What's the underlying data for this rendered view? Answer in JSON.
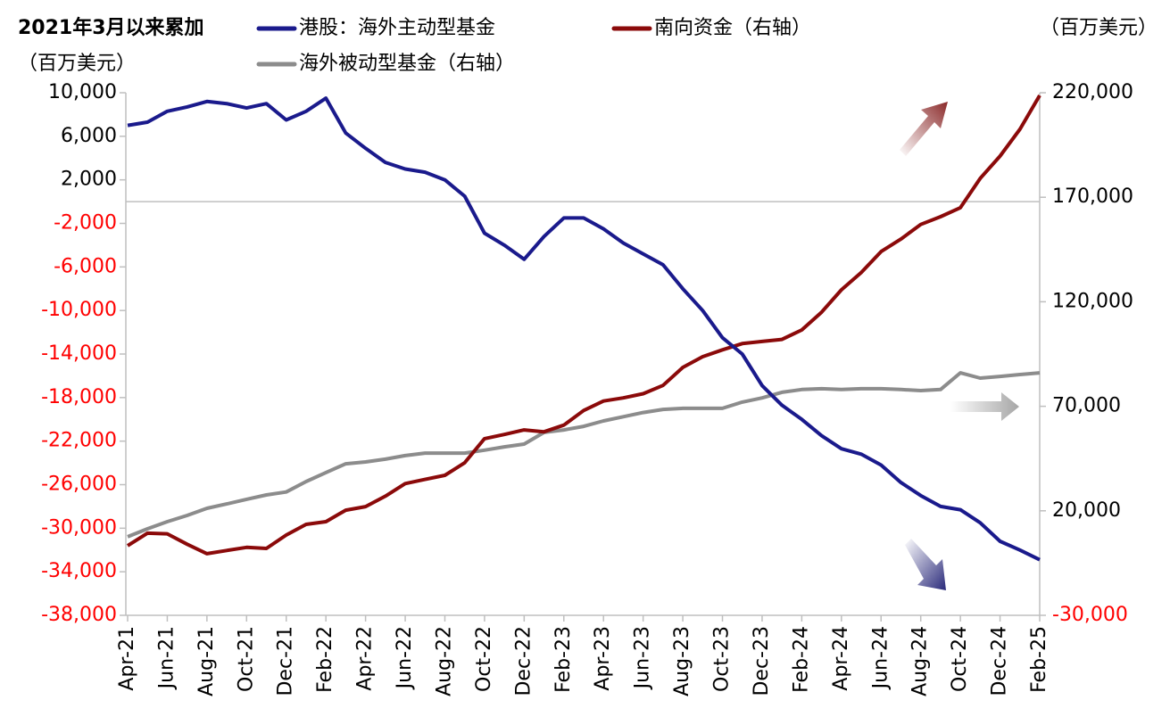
{
  "chart_data": {
    "type": "line",
    "title": "2021年3月以来累加",
    "ylabel": "（百万美元）",
    "y2label": "（百万美元）",
    "categories": [
      "Apr-21",
      null,
      "Jun-21",
      null,
      "Aug-21",
      null,
      "Oct-21",
      null,
      "Dec-21",
      null,
      "Feb-22",
      null,
      "Apr-22",
      null,
      "Jun-22",
      null,
      "Aug-22",
      null,
      "Oct-22",
      null,
      "Dec-22",
      null,
      "Feb-23",
      null,
      "Apr-23",
      null,
      "Jun-23",
      null,
      "Aug-23",
      null,
      "Oct-23",
      null,
      "Dec-23",
      null,
      "Feb-24",
      null,
      "Apr-24",
      null,
      "Jun-24",
      null,
      "Aug-24",
      null,
      "Oct-24",
      null,
      "Dec-24",
      null,
      "Feb-25"
    ],
    "series": [
      {
        "name": "港股：海外主动型基金",
        "color": "#1a1a8c",
        "values": [
          7000,
          7300,
          8300,
          8700,
          9200,
          9000,
          8600,
          9000,
          7500,
          8300,
          9500,
          6300,
          4900,
          3600,
          3000,
          2700,
          2000,
          500,
          -2900,
          -4000,
          -5300,
          -3200,
          -1500,
          -1500,
          -2500,
          -3800,
          -4800,
          -5800,
          -8000,
          -10000,
          -12500,
          -14000,
          -16900,
          -18700,
          -20000,
          -21500,
          -22700,
          -23200,
          -24200,
          -25800,
          -27000,
          -28000,
          -28300,
          -29500,
          -31200,
          -32000,
          -32900
        ]
      },
      {
        "name": "南向资金（右轴）",
        "color": "#8b0a0a",
        "axis": "y2",
        "values": [
          3300,
          9300,
          9000,
          4000,
          -500,
          1000,
          2500,
          2000,
          8400,
          13500,
          14800,
          20300,
          22000,
          27000,
          33000,
          35000,
          37000,
          43000,
          54500,
          56500,
          58700,
          57800,
          61000,
          68000,
          72500,
          74000,
          76000,
          80000,
          88600,
          93700,
          97000,
          100000,
          101000,
          102000,
          106500,
          115000,
          125700,
          134000,
          144000,
          150000,
          157000,
          160700,
          165000,
          179000,
          189700,
          202500,
          218700
        ]
      },
      {
        "name": "海外被动型基金（右轴）",
        "color": "#8c8c8c",
        "axis": "y2",
        "values": [
          7600,
          11400,
          14800,
          17800,
          21200,
          23300,
          25500,
          27600,
          29000,
          34000,
          38300,
          42500,
          43400,
          44700,
          46400,
          47600,
          47600,
          47600,
          49000,
          50600,
          51900,
          57500,
          58700,
          60400,
          63000,
          65000,
          67000,
          68500,
          69000,
          69000,
          69000,
          72000,
          74000,
          76700,
          78000,
          78400,
          78000,
          78400,
          78400,
          78000,
          77500,
          78000,
          86000,
          83500,
          84300,
          85200,
          86000
        ]
      }
    ],
    "ylim": [
      -38000,
      10000
    ],
    "yticks": [
      {
        "value": -38000,
        "label": "-38,000"
      },
      {
        "value": -34000,
        "label": "-34,000"
      },
      {
        "value": -30000,
        "label": "-30,000"
      },
      {
        "value": -26000,
        "label": "-26,000"
      },
      {
        "value": -22000,
        "label": "-22,000"
      },
      {
        "value": -18000,
        "label": "-18,000"
      },
      {
        "value": -14000,
        "label": "-14,000"
      },
      {
        "value": -10000,
        "label": "-10,000"
      },
      {
        "value": -6000,
        "label": "-6,000"
      },
      {
        "value": -2000,
        "label": "-2,000"
      },
      {
        "value": 2000,
        "label": "2,000"
      },
      {
        "value": 6000,
        "label": "6,000"
      },
      {
        "value": 10000,
        "label": "10,000"
      }
    ],
    "y2lim": [
      -30000,
      220000
    ],
    "y2ticks": [
      {
        "value": -30000,
        "label": "-30,000"
      },
      {
        "value": 20000,
        "label": "20,000"
      },
      {
        "value": 70000,
        "label": "70,000"
      },
      {
        "value": 120000,
        "label": "120,000"
      },
      {
        "value": 170000,
        "label": "170,000"
      },
      {
        "value": 220000,
        "label": "220,000"
      }
    ],
    "negative_tick_color": "#ff0000",
    "grid": false
  }
}
